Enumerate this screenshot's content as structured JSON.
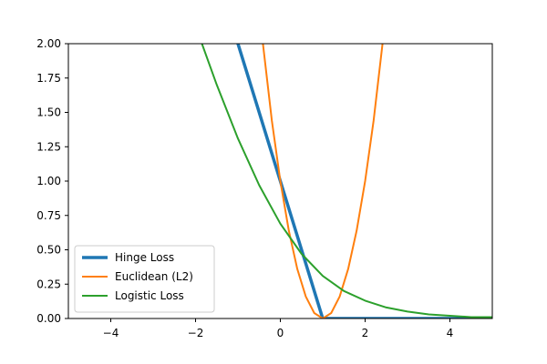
{
  "chart_data": {
    "type": "line",
    "title": "",
    "xlabel": "",
    "ylabel": "",
    "xlim": [
      -5,
      5
    ],
    "ylim": [
      0,
      2
    ],
    "xticks": [
      -4,
      -2,
      0,
      2,
      4
    ],
    "xtick_labels": [
      "−4",
      "−2",
      "0",
      "2",
      "4"
    ],
    "yticks": [
      0,
      0.25,
      0.5,
      0.75,
      1.0,
      1.25,
      1.5,
      1.75,
      2.0
    ],
    "ytick_labels": [
      "0.00",
      "0.25",
      "0.50",
      "0.75",
      "1.00",
      "1.25",
      "1.50",
      "1.75",
      "2.00"
    ],
    "grid": false,
    "legend_position": "lower-left",
    "series": [
      {
        "name": "Hinge Loss",
        "color": "#1f77b4",
        "linewidth": "thick",
        "x": [
          -1.0,
          -0.5,
          0.0,
          0.5,
          1.0,
          2.0,
          3.0,
          4.0,
          5.0
        ],
        "y": [
          2.0,
          1.5,
          1.0,
          0.5,
          0.0,
          0.0,
          0.0,
          0.0,
          0.0
        ]
      },
      {
        "name": "Euclidean (L2)",
        "color": "#ff7f0e",
        "linewidth": "normal",
        "x": [
          -0.41,
          -0.2,
          0.0,
          0.2,
          0.4,
          0.6,
          0.8,
          1.0,
          1.2,
          1.4,
          1.6,
          1.8,
          2.0,
          2.2,
          2.41
        ],
        "y": [
          2.0,
          1.44,
          1.0,
          0.64,
          0.36,
          0.16,
          0.04,
          0.0,
          0.04,
          0.16,
          0.36,
          0.64,
          1.0,
          1.44,
          2.0
        ]
      },
      {
        "name": "Logistic Loss",
        "color": "#2ca02c",
        "linewidth": "normal",
        "x": [
          -1.85,
          -1.5,
          -1.0,
          -0.5,
          0.0,
          0.5,
          1.0,
          1.5,
          2.0,
          2.5,
          3.0,
          3.5,
          4.0,
          4.5,
          5.0
        ],
        "y": [
          2.0,
          1.7,
          1.31,
          0.97,
          0.69,
          0.47,
          0.31,
          0.2,
          0.13,
          0.08,
          0.05,
          0.03,
          0.02,
          0.01,
          0.01
        ]
      }
    ]
  }
}
